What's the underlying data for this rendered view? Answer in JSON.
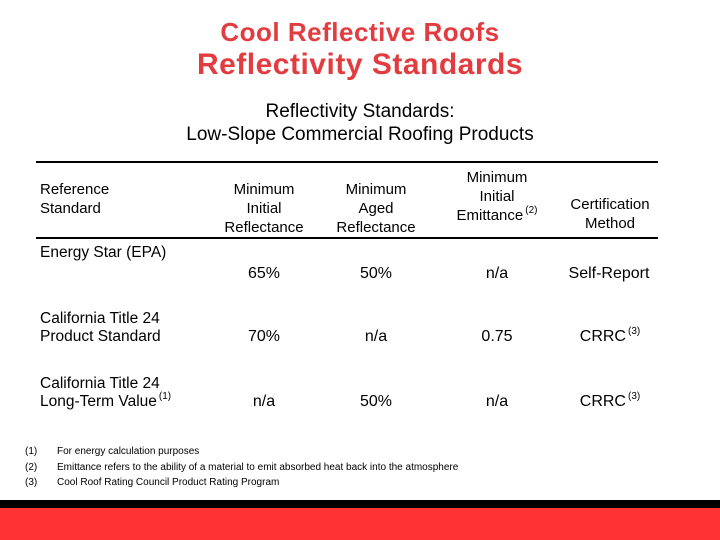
{
  "slide": {
    "title_line1": "Cool Reflective Roofs",
    "title_line2": "Reflectivity Standards",
    "subtitle_line1": "Reflectivity Standards:",
    "subtitle_line2": "Low-Slope Commercial Roofing Products"
  },
  "table": {
    "col_headers": [
      {
        "l1": "Reference",
        "l2": "Standard",
        "l3": "",
        "sup": ""
      },
      {
        "l1": "Minimum",
        "l2": "Initial",
        "l3": "Reflectance",
        "sup": ""
      },
      {
        "l1": "Minimum",
        "l2": "Aged",
        "l3": "Reflectance",
        "sup": ""
      },
      {
        "l1": "Minimum",
        "l2": "Initial",
        "l3": "Emittance",
        "sup": "(2)"
      },
      {
        "l1": "Certification",
        "l2": "Method",
        "l3": "",
        "sup": ""
      }
    ],
    "rows": [
      {
        "label_l1": "Energy Star (EPA)",
        "label_l2": "",
        "label_sup": "",
        "initial_reflectance": "65%",
        "aged_reflectance": "50%",
        "initial_emittance": "n/a",
        "certification": "Self-Report",
        "certification_sup": ""
      },
      {
        "label_l1": "California Title 24",
        "label_l2": "Product Standard",
        "label_sup": "",
        "initial_reflectance": "70%",
        "aged_reflectance": "n/a",
        "initial_emittance": "0.75",
        "certification": "CRRC",
        "certification_sup": "(3)"
      },
      {
        "label_l1": "California Title 24",
        "label_l2": "Long-Term Value",
        "label_sup": "(1)",
        "initial_reflectance": "n/a",
        "aged_reflectance": "50%",
        "initial_emittance": "n/a",
        "certification": "CRRC",
        "certification_sup": "(3)"
      }
    ]
  },
  "footnotes": [
    {
      "num": "(1)",
      "text": "For energy calculation purposes"
    },
    {
      "num": "(2)",
      "text": "Emittance refers to the ability of a material to emit absorbed heat back into the atmosphere"
    },
    {
      "num": "(3)",
      "text": "Cool Roof Rating Council Product Rating Program"
    }
  ],
  "colors": {
    "title_red": "#e23c40",
    "footer_bar_red": "#ff3333",
    "footer_strip_black": "#000000",
    "table_line_black": "#000000"
  }
}
